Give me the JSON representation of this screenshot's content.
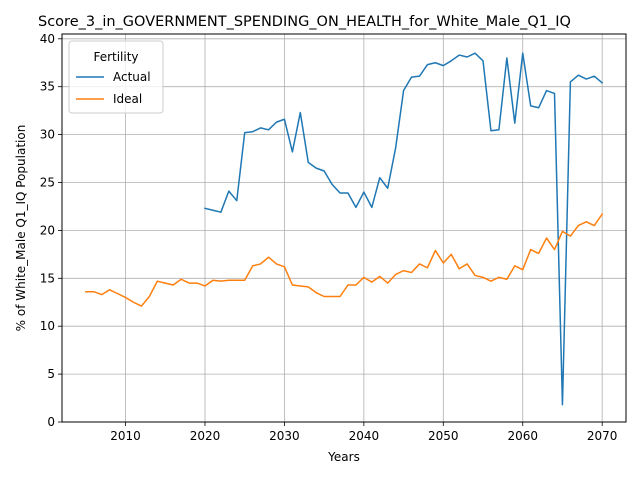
{
  "chart_data": {
    "type": "line",
    "title": "Score_3_in_GOVERNMENT_SPENDING_ON_HEALTH_for_White_Male_Q1_IQ",
    "xlabel": "Years",
    "ylabel": "% of White_Male Q1_IQ Population",
    "xlim": [
      2002,
      2073
    ],
    "ylim": [
      0,
      40.5
    ],
    "xticks": [
      2010,
      2020,
      2030,
      2040,
      2050,
      2060,
      2070
    ],
    "yticks": [
      0,
      5,
      10,
      15,
      20,
      25,
      30,
      35,
      40
    ],
    "grid": true,
    "legend": {
      "title": "Fertility",
      "placement": "top-left"
    },
    "series": [
      {
        "name": "Actual",
        "color": "#1f77b4",
        "x": [
          2020,
          2021,
          2022,
          2023,
          2024,
          2025,
          2026,
          2027,
          2028,
          2029,
          2030,
          2031,
          2032,
          2033,
          2034,
          2035,
          2036,
          2037,
          2038,
          2039,
          2040,
          2041,
          2042,
          2043,
          2044,
          2045,
          2046,
          2047,
          2048,
          2049,
          2050,
          2051,
          2052,
          2053,
          2054,
          2055,
          2056,
          2057,
          2058,
          2059,
          2060,
          2061,
          2062,
          2063,
          2064,
          2065,
          2066,
          2067,
          2068,
          2069,
          2070
        ],
        "values": [
          22.3,
          22.1,
          21.9,
          24.1,
          23.1,
          30.2,
          30.3,
          30.7,
          30.5,
          31.3,
          31.6,
          28.2,
          32.3,
          27.1,
          26.5,
          26.2,
          24.8,
          23.9,
          23.9,
          22.4,
          24.0,
          22.4,
          25.5,
          24.4,
          28.6,
          34.6,
          36.0,
          36.1,
          37.3,
          37.5,
          37.2,
          37.7,
          38.3,
          38.1,
          38.5,
          37.7,
          30.4,
          30.5,
          38.0,
          31.2,
          38.5,
          33.0,
          32.8,
          34.6,
          34.3,
          1.8,
          35.5,
          36.2,
          35.8,
          36.1,
          35.4
        ]
      },
      {
        "name": "Ideal",
        "color": "#ff7f0e",
        "x": [
          2005,
          2006,
          2007,
          2008,
          2009,
          2010,
          2011,
          2012,
          2013,
          2014,
          2015,
          2016,
          2017,
          2018,
          2019,
          2020,
          2021,
          2022,
          2023,
          2024,
          2025,
          2026,
          2027,
          2028,
          2029,
          2030,
          2031,
          2032,
          2033,
          2034,
          2035,
          2036,
          2037,
          2038,
          2039,
          2040,
          2041,
          2042,
          2043,
          2044,
          2045,
          2046,
          2047,
          2048,
          2049,
          2050,
          2051,
          2052,
          2053,
          2054,
          2055,
          2056,
          2057,
          2058,
          2059,
          2060,
          2061,
          2062,
          2063,
          2064,
          2065,
          2066,
          2067,
          2068,
          2069,
          2070
        ],
        "values": [
          13.6,
          13.6,
          13.3,
          13.8,
          13.4,
          13.0,
          12.5,
          12.1,
          13.1,
          14.7,
          14.5,
          14.3,
          14.9,
          14.5,
          14.5,
          14.2,
          14.8,
          14.7,
          14.8,
          14.8,
          14.8,
          16.3,
          16.5,
          17.2,
          16.5,
          16.2,
          14.3,
          14.2,
          14.1,
          13.5,
          13.1,
          13.1,
          13.1,
          14.3,
          14.3,
          15.1,
          14.6,
          15.2,
          14.5,
          15.4,
          15.8,
          15.6,
          16.5,
          16.1,
          17.9,
          16.6,
          17.5,
          16.0,
          16.5,
          15.3,
          15.1,
          14.7,
          15.1,
          14.9,
          16.3,
          15.9,
          18.0,
          17.6,
          19.2,
          18.0,
          19.9,
          19.4,
          20.5,
          20.9,
          20.5,
          21.7
        ]
      }
    ]
  }
}
